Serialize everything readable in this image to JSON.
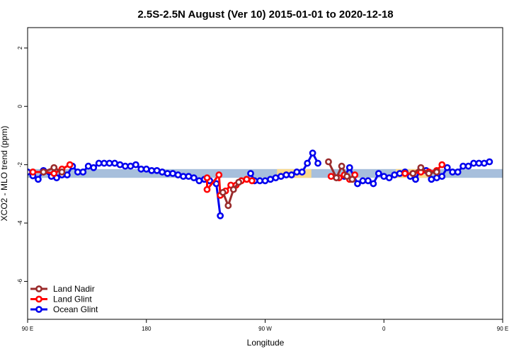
{
  "chart_data": {
    "type": "line",
    "title": "2.5S-2.5N August (Ver 10)   2015-01-01 to 2020-12-18",
    "xlabel": "Longitude",
    "ylabel": "XCO2 - MLO trend (ppm)",
    "xlim": [
      90,
      450
    ],
    "ylim": [
      -7.3,
      2.7
    ],
    "x_ticks": [
      {
        "value": 90,
        "label": "90 E"
      },
      {
        "value": 180,
        "label": "180"
      },
      {
        "value": 270,
        "label": "90 W"
      },
      {
        "value": 360,
        "label": "0"
      },
      {
        "value": 450,
        "label": "90 E"
      },
      {
        "value": 540,
        "label": "180"
      }
    ],
    "y_ticks": [
      {
        "value": 2,
        "label": "2"
      },
      {
        "value": 0,
        "label": "0"
      },
      {
        "value": -2,
        "label": "-2"
      },
      {
        "value": -4,
        "label": "-4"
      },
      {
        "value": -6,
        "label": "-6"
      }
    ],
    "bands": [
      {
        "color": "#a7bfdc",
        "y0": -2.45,
        "y1": -2.15,
        "x0": 90,
        "x1": 450
      },
      {
        "color": "#f9d98c",
        "y0": -2.45,
        "y1": -2.15,
        "x0": 279,
        "x1": 305
      },
      {
        "color": "#f9d98c",
        "y0": -2.45,
        "y1": -2.15,
        "x0": 369,
        "x1": 393
      }
    ],
    "series": [
      {
        "name": "Ocean Glint",
        "color": "#0000ee",
        "segments": [
          [
            [
              90,
              -2.25
            ],
            [
              94,
              -2.38
            ],
            [
              98,
              -2.5
            ],
            [
              102,
              -2.2
            ],
            [
              108,
              -2.4
            ],
            [
              112,
              -2.45
            ],
            [
              116,
              -2.35
            ],
            [
              120,
              -2.35
            ],
            [
              124,
              -2.05
            ],
            [
              128,
              -2.25
            ],
            [
              132,
              -2.25
            ],
            [
              136,
              -2.05
            ],
            [
              140,
              -2.1
            ],
            [
              144,
              -1.95
            ],
            [
              148,
              -1.95
            ],
            [
              152,
              -1.95
            ],
            [
              156,
              -1.95
            ],
            [
              160,
              -2.0
            ],
            [
              164,
              -2.05
            ],
            [
              168,
              -2.05
            ],
            [
              172,
              -2.0
            ],
            [
              176,
              -2.15
            ],
            [
              180,
              -2.15
            ],
            [
              184,
              -2.2
            ],
            [
              188,
              -2.2
            ],
            [
              192,
              -2.25
            ],
            [
              196,
              -2.3
            ],
            [
              200,
              -2.3
            ],
            [
              204,
              -2.35
            ],
            [
              208,
              -2.4
            ],
            [
              212,
              -2.4
            ],
            [
              216,
              -2.45
            ],
            [
              220,
              -2.55
            ],
            [
              224,
              -2.5
            ],
            [
              228,
              -2.55
            ],
            [
              233,
              -2.65
            ],
            [
              236,
              -3.75
            ]
          ],
          [
            [
              259,
              -2.3
            ],
            [
              262,
              -2.55
            ],
            [
              266,
              -2.55
            ],
            [
              270,
              -2.55
            ],
            [
              274,
              -2.5
            ],
            [
              278,
              -2.45
            ],
            [
              282,
              -2.4
            ],
            [
              286,
              -2.35
            ],
            [
              290,
              -2.35
            ],
            [
              294,
              -2.25
            ],
            [
              298,
              -2.25
            ],
            [
              302,
              -1.95
            ],
            [
              306,
              -1.6
            ],
            [
              310,
              -1.95
            ]
          ],
          [
            [
              330,
              -2.4
            ],
            [
              334,
              -2.1
            ],
            [
              340,
              -2.65
            ],
            [
              344,
              -2.55
            ],
            [
              348,
              -2.55
            ],
            [
              352,
              -2.65
            ],
            [
              356,
              -2.3
            ],
            [
              360,
              -2.4
            ],
            [
              364,
              -2.45
            ],
            [
              368,
              -2.35
            ],
            [
              372,
              -2.3
            ],
            [
              376,
              -2.25
            ],
            [
              380,
              -2.4
            ],
            [
              384,
              -2.5
            ],
            [
              388,
              -2.15
            ],
            [
              392,
              -2.2
            ],
            [
              396,
              -2.5
            ],
            [
              400,
              -2.45
            ],
            [
              404,
              -2.4
            ],
            [
              408,
              -2.1
            ],
            [
              412,
              -2.25
            ],
            [
              416,
              -2.25
            ],
            [
              420,
              -2.05
            ],
            [
              424,
              -2.05
            ],
            [
              428,
              -1.95
            ],
            [
              432,
              -1.95
            ],
            [
              436,
              -1.95
            ],
            [
              440,
              -1.9
            ]
          ]
        ]
      },
      {
        "name": "Land Glint",
        "color": "#ff0000",
        "segments": [
          [
            [
              94,
              -2.25
            ],
            [
              102,
              -2.25
            ],
            [
              110,
              -2.3
            ],
            [
              116,
              -2.15
            ],
            [
              122,
              -2.0
            ]
          ],
          [
            [
              226,
              -2.45
            ],
            [
              226,
              -2.85
            ],
            [
              235,
              -2.35
            ],
            [
              236,
              -3.05
            ],
            [
              240,
              -2.9
            ],
            [
              244,
              -2.7
            ],
            [
              248,
              -2.7
            ],
            [
              252,
              -2.55
            ],
            [
              256,
              -2.5
            ],
            [
              260,
              -2.55
            ]
          ],
          [
            [
              320,
              -2.4
            ],
            [
              326,
              -2.45
            ],
            [
              330,
              -2.35
            ],
            [
              334,
              -2.5
            ],
            [
              338,
              -2.35
            ]
          ],
          [
            [
              376,
              -2.3
            ],
            [
              382,
              -2.3
            ],
            [
              388,
              -2.25
            ],
            [
              394,
              -2.25
            ],
            [
              400,
              -2.2
            ],
            [
              404,
              -2.0
            ]
          ]
        ]
      },
      {
        "name": "Land Nadir",
        "color": "#9a2c2c",
        "segments": [
          [
            [
              102,
              -2.25
            ],
            [
              110,
              -2.1
            ],
            [
              116,
              -2.25
            ]
          ],
          [
            [
              238,
              -2.95
            ],
            [
              242,
              -3.4
            ],
            [
              246,
              -2.85
            ],
            [
              250,
              -2.6
            ]
          ],
          [
            [
              318,
              -1.9
            ],
            [
              324,
              -2.45
            ],
            [
              328,
              -2.05
            ],
            [
              332,
              -2.4
            ],
            [
              336,
              -2.5
            ]
          ],
          [
            [
              382,
              -2.3
            ],
            [
              388,
              -2.1
            ],
            [
              394,
              -2.3
            ],
            [
              400,
              -2.25
            ]
          ]
        ]
      }
    ],
    "legend": {
      "position": "bottom-left",
      "entries": [
        "Land Nadir",
        "Land Glint",
        "Ocean Glint"
      ]
    }
  }
}
